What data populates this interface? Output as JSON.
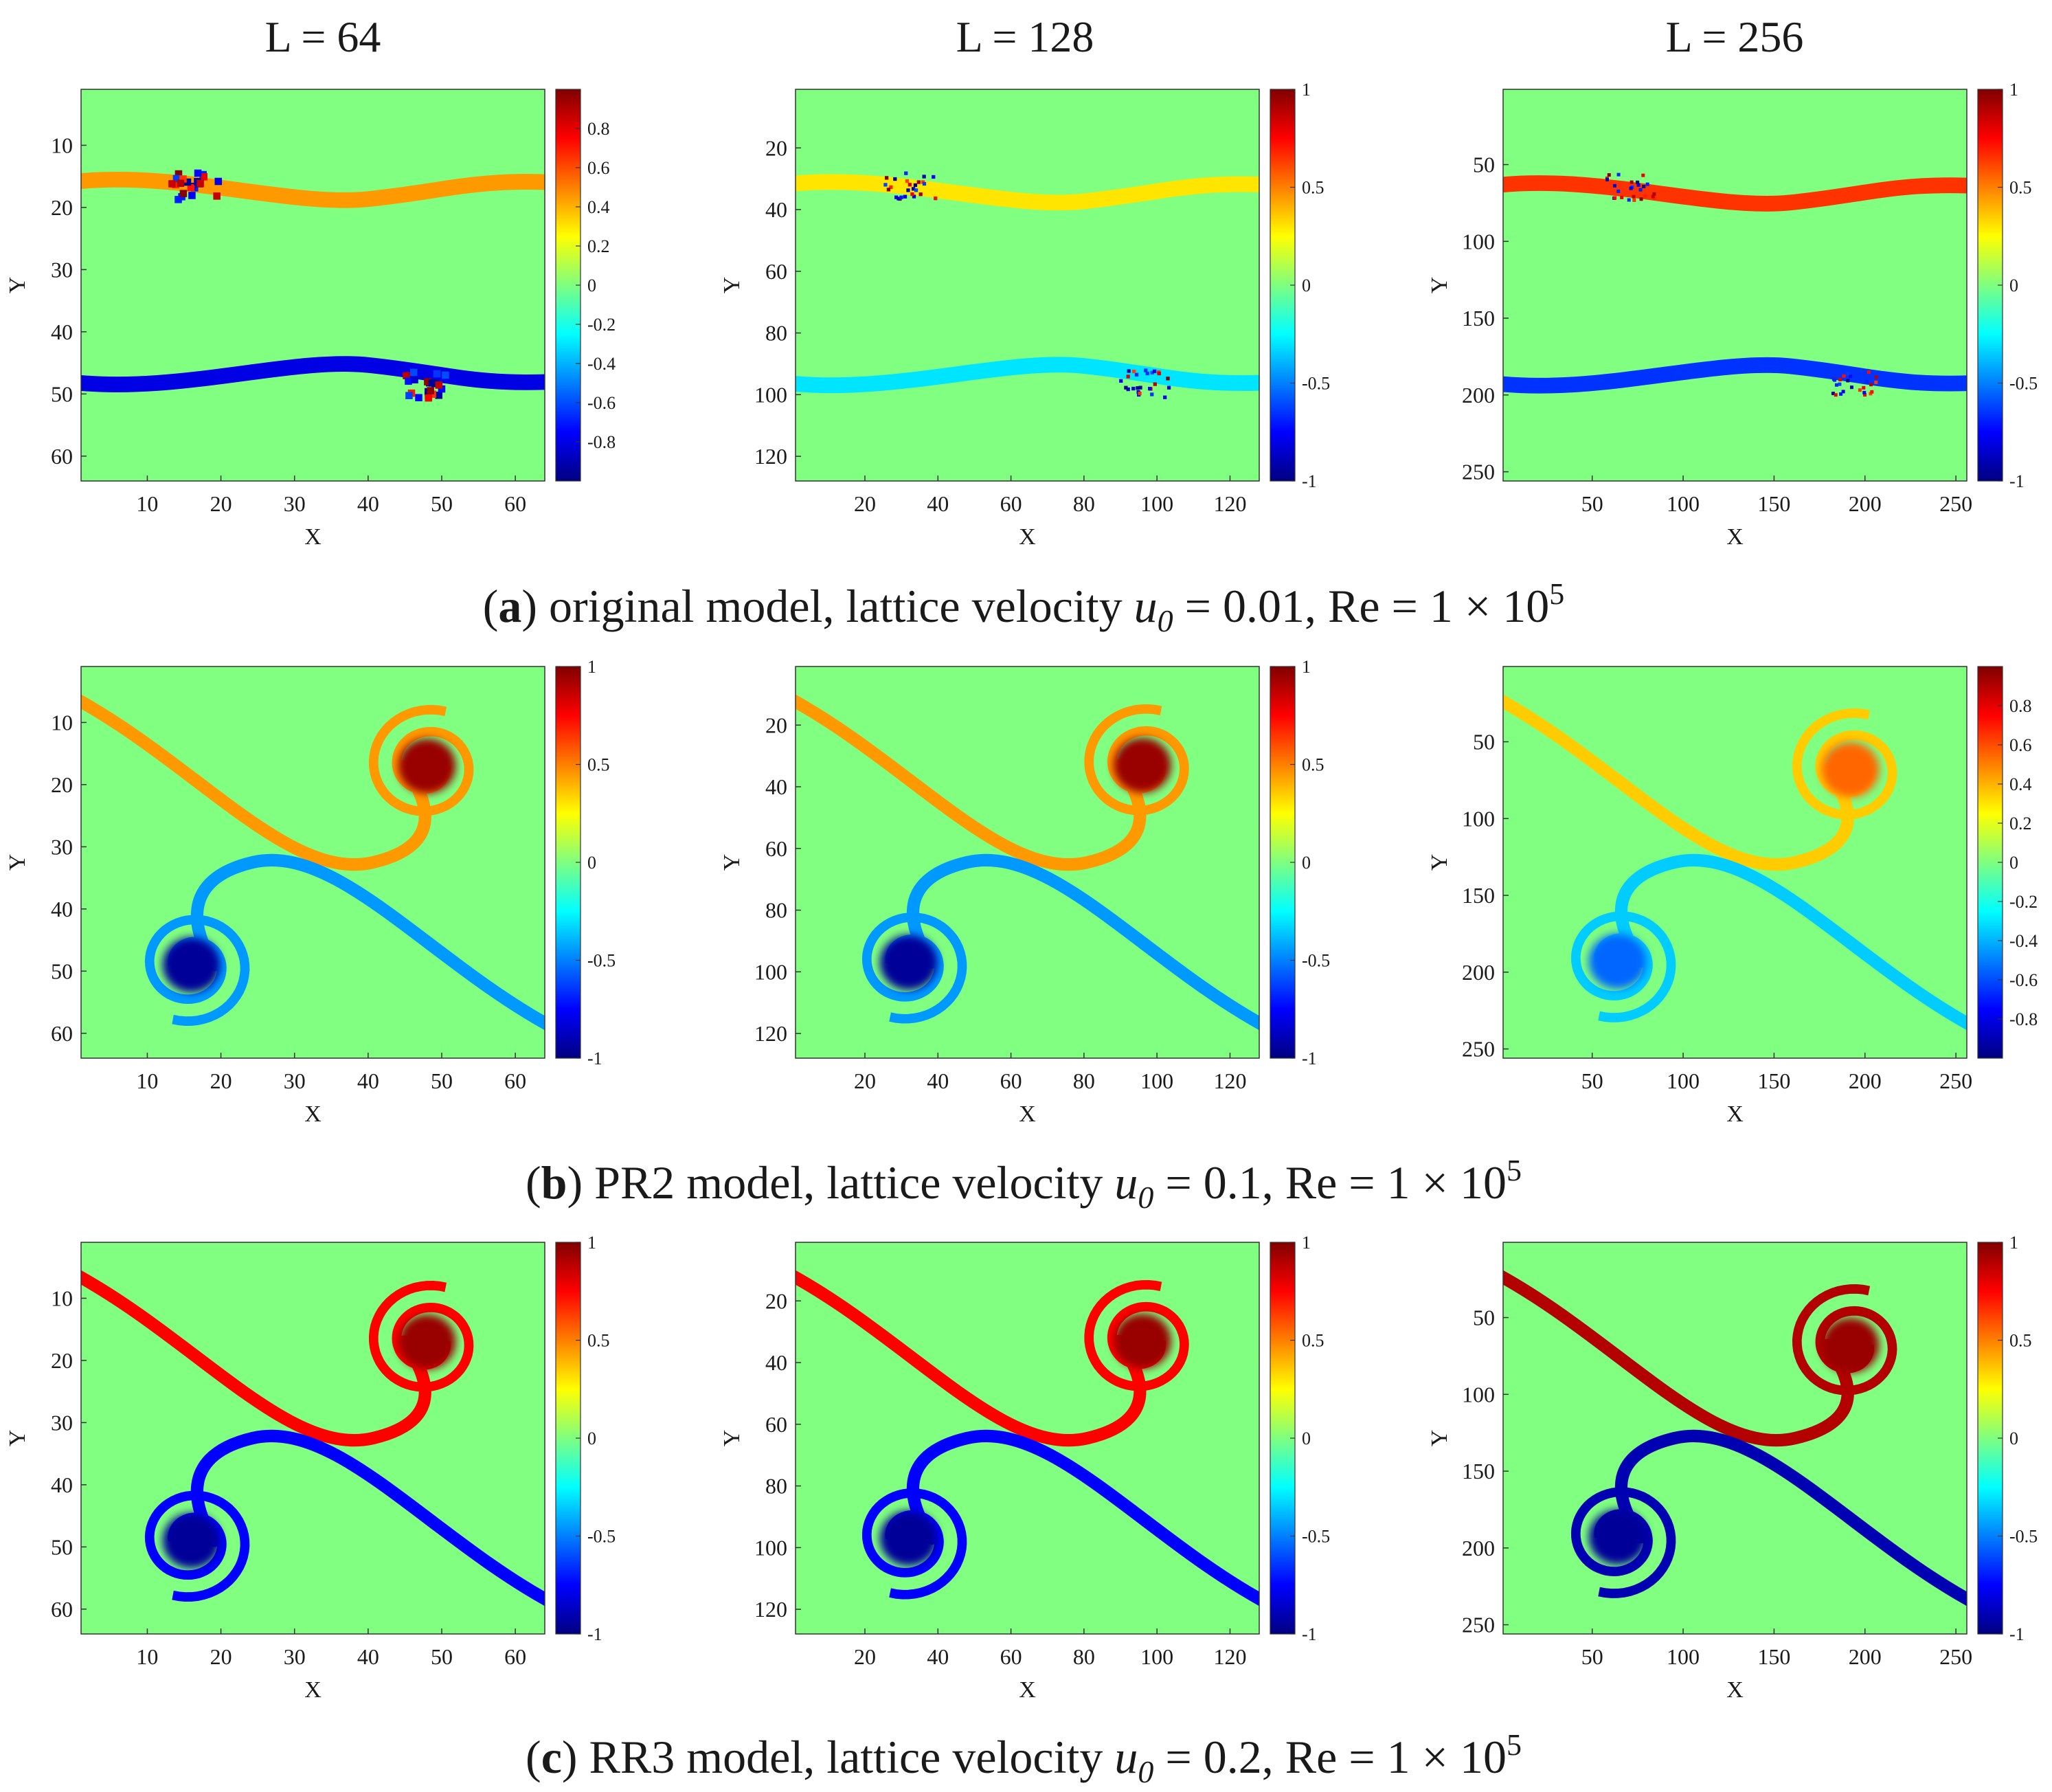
{
  "figure": {
    "column_titles": [
      "L = 64",
      "L = 128",
      "L = 256"
    ],
    "rows": [
      {
        "letter": "a",
        "caption_text": "original model, lattice velocity",
        "velocity_symbol": "u",
        "velocity_subscript": "0",
        "velocity_value": "= 0.01, Re = 1 × 10",
        "re_exponent": "5"
      },
      {
        "letter": "b",
        "caption_text": "PR2 model, lattice velocity",
        "velocity_symbol": "u",
        "velocity_subscript": "0",
        "velocity_value": "= 0.1, Re = 1 × 10",
        "re_exponent": "5"
      },
      {
        "letter": "c",
        "caption_text": "RR3 model, lattice velocity",
        "velocity_symbol": "u",
        "velocity_subscript": "0",
        "velocity_value": "= 0.2, Re = 1 × 10",
        "re_exponent": "5"
      }
    ]
  },
  "chart_data": [
    {
      "type": "heatmap",
      "row": "a",
      "column_title": "L = 64",
      "xlabel": "X",
      "ylabel": "Y",
      "xlim": [
        1,
        64
      ],
      "ylim": [
        1,
        64
      ],
      "x_ticks": [
        "10",
        "20",
        "30",
        "40",
        "50",
        "60"
      ],
      "y_ticks": [
        "10",
        "20",
        "30",
        "40",
        "50",
        "60"
      ],
      "colorbar_range": [
        -1,
        1
      ],
      "colorbar_ticks": [
        "0.8",
        "0.6",
        "0.4",
        "0.2",
        "0",
        "-0.2",
        "-0.4",
        "-0.6",
        "-0.8"
      ],
      "pattern": "shear",
      "upper_layer_y": 16,
      "lower_layer_y": 48,
      "upper_value": 0.45,
      "lower_value": -0.8,
      "oscillation_x": [
        16,
        48
      ]
    },
    {
      "type": "heatmap",
      "row": "a",
      "column_title": "L = 128",
      "xlabel": "X",
      "ylabel": "Y",
      "xlim": [
        1,
        128
      ],
      "ylim": [
        1,
        128
      ],
      "x_ticks": [
        "20",
        "40",
        "60",
        "80",
        "100",
        "120"
      ],
      "y_ticks": [
        "20",
        "40",
        "60",
        "80",
        "100",
        "120"
      ],
      "colorbar_range": [
        -1,
        1
      ],
      "colorbar_ticks": [
        "1",
        "0.5",
        "0",
        "-0.5",
        "-1"
      ],
      "pattern": "shear",
      "upper_layer_y": 32,
      "lower_layer_y": 96,
      "upper_value": 0.3,
      "lower_value": -0.3,
      "oscillation_x": [
        32,
        96
      ]
    },
    {
      "type": "heatmap",
      "row": "a",
      "column_title": "L = 256",
      "xlabel": "X",
      "ylabel": "Y",
      "xlim": [
        1,
        256
      ],
      "ylim": [
        1,
        256
      ],
      "x_ticks": [
        "50",
        "100",
        "150",
        "200",
        "250"
      ],
      "y_ticks": [
        "50",
        "100",
        "150",
        "200",
        "250"
      ],
      "colorbar_range": [
        -1,
        1
      ],
      "colorbar_ticks": [
        "1",
        "0.5",
        "0",
        "-0.5",
        "-1"
      ],
      "pattern": "shear",
      "upper_layer_y": 64,
      "lower_layer_y": 192,
      "upper_value": 0.65,
      "lower_value": -0.65,
      "oscillation_x": [
        70,
        195
      ]
    },
    {
      "type": "heatmap",
      "row": "b",
      "column_title": "L = 64",
      "xlabel": "X",
      "ylabel": "Y",
      "xlim": [
        1,
        64
      ],
      "ylim": [
        1,
        64
      ],
      "x_ticks": [
        "10",
        "20",
        "30",
        "40",
        "50",
        "60"
      ],
      "y_ticks": [
        "10",
        "20",
        "30",
        "40",
        "50",
        "60"
      ],
      "colorbar_range": [
        -1,
        1
      ],
      "colorbar_ticks": [
        "1",
        "0.5",
        "0",
        "-0.5",
        "-1"
      ],
      "pattern": "vortex",
      "vortex_centers": [
        [
          48,
          17
        ],
        [
          16,
          49
        ]
      ],
      "core_value": 0.95,
      "filament_value": 0.45
    },
    {
      "type": "heatmap",
      "row": "b",
      "column_title": "L = 128",
      "xlabel": "X",
      "ylabel": "Y",
      "xlim": [
        1,
        128
      ],
      "ylim": [
        1,
        128
      ],
      "x_ticks": [
        "20",
        "40",
        "60",
        "80",
        "100",
        "120"
      ],
      "y_ticks": [
        "20",
        "40",
        "60",
        "80",
        "100",
        "120"
      ],
      "colorbar_range": [
        -1,
        1
      ],
      "colorbar_ticks": [
        "1",
        "0.5",
        "0",
        "-0.5",
        "-1"
      ],
      "pattern": "vortex",
      "vortex_centers": [
        [
          96,
          33
        ],
        [
          32,
          97
        ]
      ],
      "core_value": 0.95,
      "filament_value": 0.45
    },
    {
      "type": "heatmap",
      "row": "b",
      "column_title": "L = 256",
      "xlabel": "X",
      "ylabel": "Y",
      "xlim": [
        1,
        256
      ],
      "ylim": [
        1,
        256
      ],
      "x_ticks": [
        "50",
        "100",
        "150",
        "200",
        "250"
      ],
      "y_ticks": [
        "50",
        "100",
        "150",
        "200",
        "250"
      ],
      "colorbar_range": [
        -1,
        1
      ],
      "colorbar_ticks": [
        "0.8",
        "0.6",
        "0.4",
        "0.2",
        "0",
        "-0.2",
        "-0.4",
        "-0.6",
        "-0.8"
      ],
      "pattern": "vortex",
      "vortex_centers": [
        [
          192,
          68
        ],
        [
          64,
          193
        ]
      ],
      "core_value": 0.55,
      "filament_value": 0.35
    },
    {
      "type": "heatmap",
      "row": "c",
      "column_title": "L = 64",
      "xlabel": "X",
      "ylabel": "Y",
      "xlim": [
        1,
        64
      ],
      "ylim": [
        1,
        64
      ],
      "x_ticks": [
        "10",
        "20",
        "30",
        "40",
        "50",
        "60"
      ],
      "y_ticks": [
        "10",
        "20",
        "30",
        "40",
        "50",
        "60"
      ],
      "colorbar_range": [
        -1,
        1
      ],
      "colorbar_ticks": [
        "1",
        "0.5",
        "0",
        "-0.5",
        "-1"
      ],
      "pattern": "vortex",
      "vortex_centers": [
        [
          48,
          17
        ],
        [
          16,
          49
        ]
      ],
      "core_value": 0.95,
      "filament_value": 0.75
    },
    {
      "type": "heatmap",
      "row": "c",
      "column_title": "L = 128",
      "xlabel": "X",
      "ylabel": "Y",
      "xlim": [
        1,
        128
      ],
      "ylim": [
        1,
        128
      ],
      "x_ticks": [
        "20",
        "40",
        "60",
        "80",
        "100",
        "120"
      ],
      "y_ticks": [
        "20",
        "40",
        "60",
        "80",
        "100",
        "120"
      ],
      "colorbar_range": [
        -1,
        1
      ],
      "colorbar_ticks": [
        "1",
        "0.5",
        "0",
        "-0.5",
        "-1"
      ],
      "pattern": "vortex",
      "vortex_centers": [
        [
          96,
          33
        ],
        [
          32,
          97
        ]
      ],
      "core_value": 0.95,
      "filament_value": 0.75
    },
    {
      "type": "heatmap",
      "row": "c",
      "column_title": "L = 256",
      "xlabel": "X",
      "ylabel": "Y",
      "xlim": [
        1,
        256
      ],
      "ylim": [
        1,
        256
      ],
      "x_ticks": [
        "50",
        "100",
        "150",
        "200",
        "250"
      ],
      "y_ticks": [
        "50",
        "100",
        "150",
        "200",
        "250"
      ],
      "colorbar_range": [
        -1,
        1
      ],
      "colorbar_ticks": [
        "1",
        "0.5",
        "0",
        "-0.5",
        "-1"
      ],
      "pattern": "vortex",
      "vortex_centers": [
        [
          192,
          68
        ],
        [
          64,
          193
        ]
      ],
      "core_value": 0.95,
      "filament_value": 0.9
    }
  ]
}
